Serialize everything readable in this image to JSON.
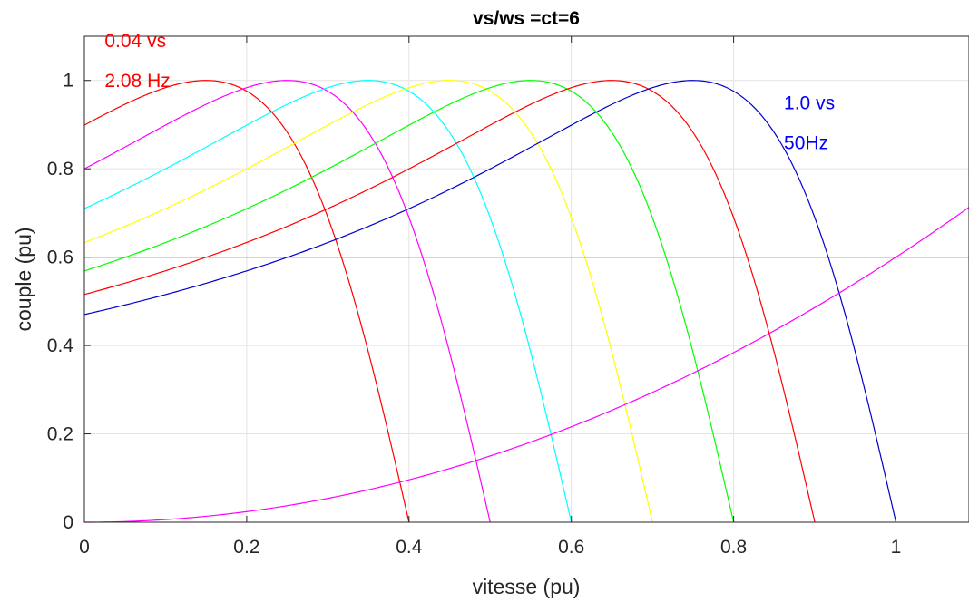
{
  "chart_data": {
    "type": "line",
    "title": "vs/ws =ct=6",
    "xlabel": "vitesse (pu)",
    "ylabel": "couple (pu)",
    "xlim": [
      0,
      1.09
    ],
    "ylim": [
      0,
      1.1
    ],
    "x_ticks": [
      0,
      0.2,
      0.4,
      0.6,
      0.8,
      1
    ],
    "x_tick_labels": [
      "0",
      "0.2",
      "0.4",
      "0.6",
      "0.8",
      "1"
    ],
    "y_ticks": [
      0,
      0.2,
      0.4,
      0.6,
      0.8,
      1
    ],
    "y_tick_labels": [
      "0",
      "0.2",
      "0.4",
      "0.6",
      "0.8",
      "1"
    ],
    "grid": true,
    "torque_curves": [
      {
        "color": "#ff0000",
        "sync_speed": 0.4,
        "peak_speed": 0.15,
        "peak_value": 1.0,
        "value_at_zero": 0.898
      },
      {
        "color": "#ff00ff",
        "sync_speed": 0.5,
        "peak_speed": 0.25,
        "peak_value": 1.0,
        "value_at_zero": 0.8
      },
      {
        "color": "#00ffff",
        "sync_speed": 0.6,
        "peak_speed": 0.35,
        "peak_value": 1.0,
        "value_at_zero": 0.71
      },
      {
        "color": "#ffff00",
        "sync_speed": 0.7,
        "peak_speed": 0.45,
        "peak_value": 1.0,
        "value_at_zero": 0.634
      },
      {
        "color": "#00ff00",
        "sync_speed": 0.8,
        "peak_speed": 0.55,
        "peak_value": 1.0,
        "value_at_zero": 0.57
      },
      {
        "color": "#ff0000",
        "sync_speed": 0.9,
        "peak_speed": 0.65,
        "peak_value": 1.0,
        "value_at_zero": 0.516
      },
      {
        "color": "#0000cc",
        "sync_speed": 1.0,
        "peak_speed": 0.75,
        "peak_value": 1.0,
        "value_at_zero": 0.471
      }
    ],
    "load_line": {
      "color": "#0072bd",
      "value": 0.6
    },
    "load_curve": {
      "color": "#ff00ff",
      "type": "quadratic",
      "points": [
        [
          0,
          0
        ],
        [
          0.5,
          0.15
        ],
        [
          1.0,
          0.6
        ],
        [
          1.09,
          0.713
        ]
      ]
    },
    "annotations": [
      {
        "text": "0.04 vs",
        "color": "#ff0000",
        "x": 0.025,
        "y": 1.075
      },
      {
        "text": "2.08 Hz",
        "color": "#ff0000",
        "x": 0.025,
        "y": 0.985
      },
      {
        "text": "1.0 vs",
        "color": "#0000ff",
        "x": 0.862,
        "y": 0.935
      },
      {
        "text": "50Hz",
        "color": "#0000ff",
        "x": 0.862,
        "y": 0.845
      }
    ]
  }
}
